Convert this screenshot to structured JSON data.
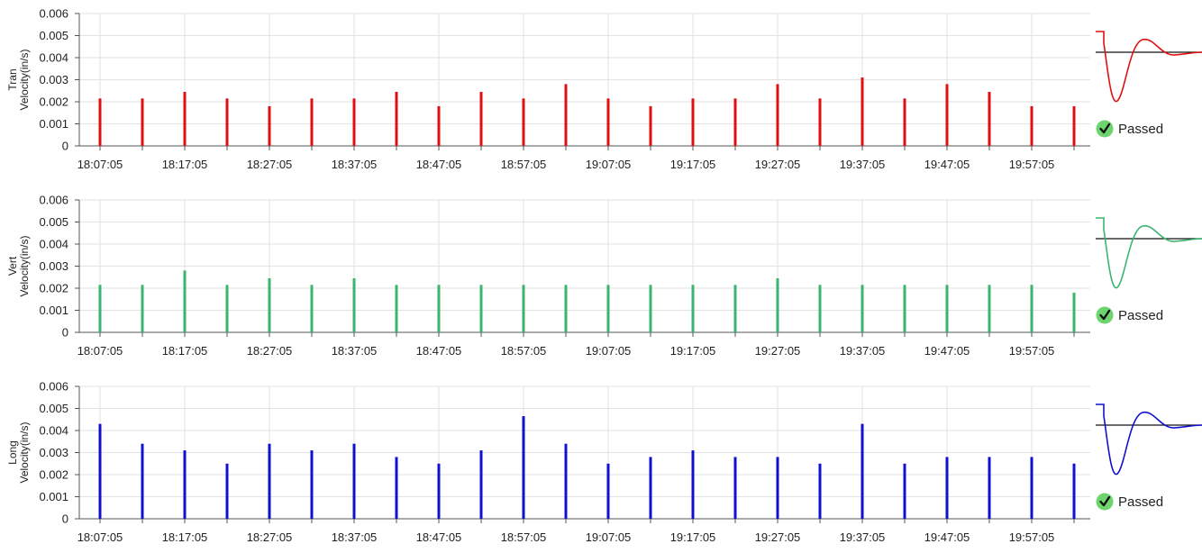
{
  "chart_data": [
    {
      "type": "bar",
      "ylabel_lines": [
        "Tran",
        "Velocity(in/s)"
      ],
      "ylim": [
        0,
        0.006
      ],
      "yticks": [
        "0",
        "0.001",
        "0.002",
        "0.003",
        "0.004",
        "0.005",
        "0.006"
      ],
      "xtick_labels": [
        "18:07:05",
        "18:17:05",
        "18:27:05",
        "18:37:05",
        "18:47:05",
        "18:57:05",
        "19:07:05",
        "19:17:05",
        "19:27:05",
        "19:37:05",
        "19:47:05",
        "19:57:05"
      ],
      "grid": true,
      "color": "#e01010",
      "values": [
        0.00215,
        0.00215,
        0.00245,
        0.00215,
        0.0018,
        0.00215,
        0.00215,
        0.00245,
        0.0018,
        0.00245,
        0.00215,
        0.0028,
        0.00215,
        0.0018,
        0.00215,
        0.00215,
        0.0028,
        0.00215,
        0.0031,
        0.00215,
        0.0028,
        0.00245,
        0.0018,
        0.0018
      ],
      "status": "Passed"
    },
    {
      "type": "bar",
      "ylabel_lines": [
        "Vert",
        "Velocity(in/s)"
      ],
      "ylim": [
        0,
        0.006
      ],
      "yticks": [
        "0",
        "0.001",
        "0.002",
        "0.003",
        "0.004",
        "0.005",
        "0.006"
      ],
      "xtick_labels": [
        "18:07:05",
        "18:17:05",
        "18:27:05",
        "18:37:05",
        "18:47:05",
        "18:57:05",
        "19:07:05",
        "19:17:05",
        "19:27:05",
        "19:37:05",
        "19:47:05",
        "19:57:05"
      ],
      "grid": true,
      "color": "#3cb371",
      "values": [
        0.00215,
        0.00215,
        0.0028,
        0.00215,
        0.00245,
        0.00215,
        0.00245,
        0.00215,
        0.00215,
        0.00215,
        0.00215,
        0.00215,
        0.00215,
        0.00215,
        0.00215,
        0.00215,
        0.00245,
        0.00215,
        0.00215,
        0.00215,
        0.00215,
        0.00215,
        0.00215,
        0.0018
      ],
      "status": "Passed"
    },
    {
      "type": "bar",
      "ylabel_lines": [
        "Long",
        "Velocity(in/s)"
      ],
      "ylim": [
        0,
        0.006
      ],
      "yticks": [
        "0",
        "0.001",
        "0.002",
        "0.003",
        "0.004",
        "0.005",
        "0.006"
      ],
      "xtick_labels": [
        "18:07:05",
        "18:17:05",
        "18:27:05",
        "18:37:05",
        "18:47:05",
        "18:57:05",
        "19:07:05",
        "19:17:05",
        "19:27:05",
        "19:37:05",
        "19:47:05",
        "19:57:05"
      ],
      "grid": true,
      "color": "#1010d0",
      "values": [
        0.0043,
        0.0034,
        0.0031,
        0.0025,
        0.0034,
        0.0031,
        0.0034,
        0.0028,
        0.0025,
        0.0031,
        0.00465,
        0.0034,
        0.0025,
        0.0028,
        0.0031,
        0.0028,
        0.0028,
        0.0025,
        0.0043,
        0.0025,
        0.0028,
        0.0028,
        0.0028,
        0.0025
      ],
      "status": "Passed"
    }
  ]
}
